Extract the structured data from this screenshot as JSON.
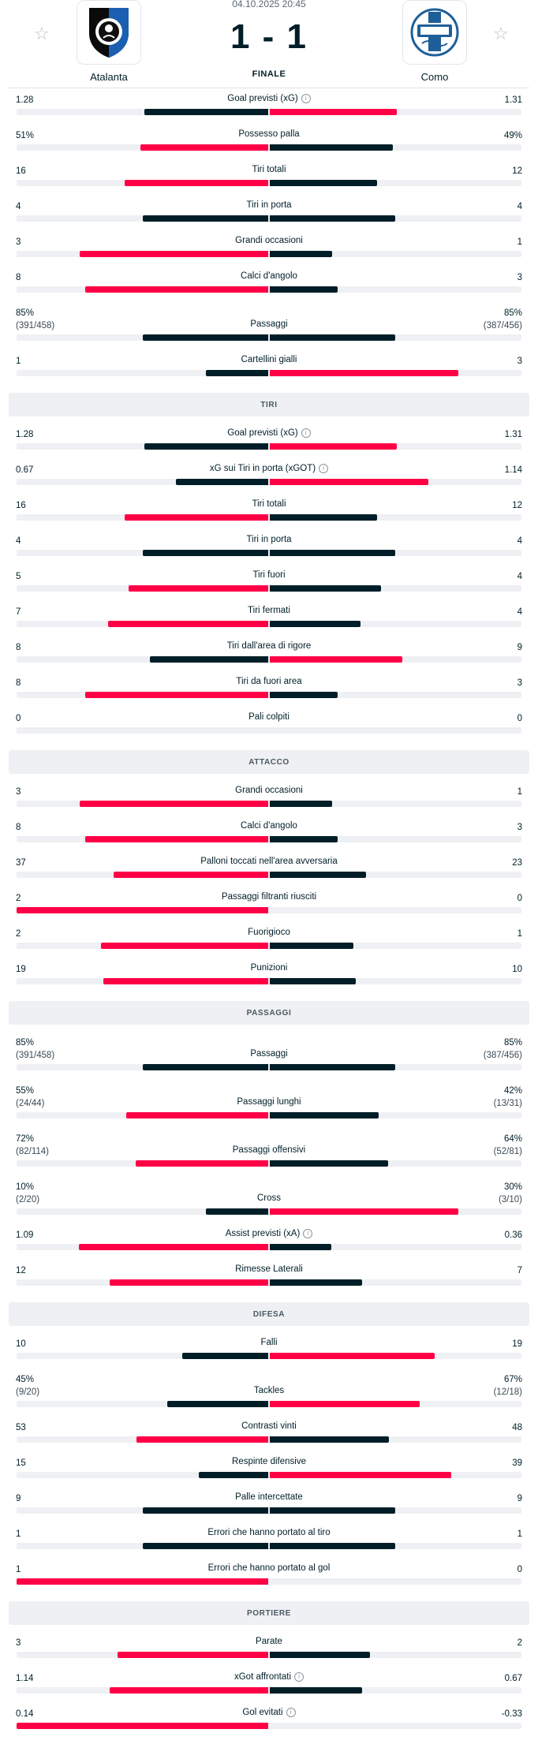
{
  "match": {
    "date": "04.10.2025 20:45",
    "score": "1 - 1",
    "status": "FINALE",
    "home": {
      "name": "Atalanta"
    },
    "away": {
      "name": "Como"
    }
  },
  "colors": {
    "accent": "#ff0046",
    "dark": "#001e28",
    "track": "#eef0f3"
  },
  "sections": [
    {
      "title": "",
      "rows": [
        {
          "label": "Goal previsti (xG)",
          "info": true,
          "home": "1.28",
          "away": "1.31",
          "hn": 1.28,
          "an": 1.31
        },
        {
          "label": "Possesso palla",
          "home": "51%",
          "away": "49%",
          "hn": 51,
          "an": 49
        },
        {
          "label": "Tiri totali",
          "home": "16",
          "away": "12",
          "hn": 16,
          "an": 12
        },
        {
          "label": "Tiri in porta",
          "home": "4",
          "away": "4",
          "hn": 4,
          "an": 4
        },
        {
          "label": "Grandi occasioni",
          "home": "3",
          "away": "1",
          "hn": 3,
          "an": 1
        },
        {
          "label": "Calci d'angolo",
          "home": "8",
          "away": "3",
          "hn": 8,
          "an": 3
        },
        {
          "label": "Passaggi",
          "home": "85%",
          "home_sub": "(391/458)",
          "away": "85%",
          "away_sub": "(387/456)",
          "hn": 85,
          "an": 85
        },
        {
          "label": "Cartellini gialli",
          "home": "1",
          "away": "3",
          "hn": 1,
          "an": 3,
          "lower_better": true
        }
      ]
    },
    {
      "title": "TIRI",
      "rows": [
        {
          "label": "Goal previsti (xG)",
          "info": true,
          "home": "1.28",
          "away": "1.31",
          "hn": 1.28,
          "an": 1.31
        },
        {
          "label": "xG sui Tiri in porta (xGOT)",
          "info": true,
          "home": "0.67",
          "away": "1.14",
          "hn": 0.67,
          "an": 1.14
        },
        {
          "label": "Tiri totali",
          "home": "16",
          "away": "12",
          "hn": 16,
          "an": 12
        },
        {
          "label": "Tiri in porta",
          "home": "4",
          "away": "4",
          "hn": 4,
          "an": 4
        },
        {
          "label": "Tiri fuori",
          "home": "5",
          "away": "4",
          "hn": 5,
          "an": 4
        },
        {
          "label": "Tiri fermati",
          "home": "7",
          "away": "4",
          "hn": 7,
          "an": 4
        },
        {
          "label": "Tiri dall'area di rigore",
          "home": "8",
          "away": "9",
          "hn": 8,
          "an": 9
        },
        {
          "label": "Tiri da fuori area",
          "home": "8",
          "away": "3",
          "hn": 8,
          "an": 3
        },
        {
          "label": "Pali colpiti",
          "home": "0",
          "away": "0",
          "hn": 0,
          "an": 0
        }
      ]
    },
    {
      "title": "ATTACCO",
      "rows": [
        {
          "label": "Grandi occasioni",
          "home": "3",
          "away": "1",
          "hn": 3,
          "an": 1
        },
        {
          "label": "Calci d'angolo",
          "home": "8",
          "away": "3",
          "hn": 8,
          "an": 3
        },
        {
          "label": "Palloni toccati nell'area avversaria",
          "home": "37",
          "away": "23",
          "hn": 37,
          "an": 23
        },
        {
          "label": "Passaggi filtranti riusciti",
          "home": "2",
          "away": "0",
          "hn": 2,
          "an": 0
        },
        {
          "label": "Fuorigioco",
          "home": "2",
          "away": "1",
          "hn": 2,
          "an": 1
        },
        {
          "label": "Punizioni",
          "home": "19",
          "away": "10",
          "hn": 19,
          "an": 10
        }
      ]
    },
    {
      "title": "PASSAGGI",
      "rows": [
        {
          "label": "Passaggi",
          "home": "85%",
          "home_sub": "(391/458)",
          "away": "85%",
          "away_sub": "(387/456)",
          "hn": 85,
          "an": 85
        },
        {
          "label": "Passaggi lunghi",
          "home": "55%",
          "home_sub": "(24/44)",
          "away": "42%",
          "away_sub": "(13/31)",
          "hn": 55,
          "an": 42
        },
        {
          "label": "Passaggi offensivi",
          "home": "72%",
          "home_sub": "(82/114)",
          "away": "64%",
          "away_sub": "(52/81)",
          "hn": 72,
          "an": 64
        },
        {
          "label": "Cross",
          "home": "10%",
          "home_sub": "(2/20)",
          "away": "30%",
          "away_sub": "(3/10)",
          "hn": 10,
          "an": 30
        },
        {
          "label": "Assist previsti (xA)",
          "info": true,
          "home": "1.09",
          "away": "0.36",
          "hn": 1.09,
          "an": 0.36
        },
        {
          "label": "Rimesse Laterali",
          "home": "12",
          "away": "7",
          "hn": 12,
          "an": 7
        }
      ]
    },
    {
      "title": "DIFESA",
      "rows": [
        {
          "label": "Falli",
          "home": "10",
          "away": "19",
          "hn": 10,
          "an": 19
        },
        {
          "label": "Tackles",
          "home": "45%",
          "home_sub": "(9/20)",
          "away": "67%",
          "away_sub": "(12/18)",
          "hn": 45,
          "an": 67
        },
        {
          "label": "Contrasti vinti",
          "home": "53",
          "away": "48",
          "hn": 53,
          "an": 48
        },
        {
          "label": "Respinte difensive",
          "home": "15",
          "away": "39",
          "hn": 15,
          "an": 39
        },
        {
          "label": "Palle intercettate",
          "home": "9",
          "away": "9",
          "hn": 9,
          "an": 9
        },
        {
          "label": "Errori che hanno portato al tiro",
          "home": "1",
          "away": "1",
          "hn": 1,
          "an": 1
        },
        {
          "label": "Errori che hanno portato al gol",
          "home": "1",
          "away": "0",
          "hn": 1,
          "an": 0,
          "lower_better": true
        }
      ]
    },
    {
      "title": "PORTIERE",
      "rows": [
        {
          "label": "Parate",
          "home": "3",
          "away": "2",
          "hn": 3,
          "an": 2
        },
        {
          "label": "xGot affrontati",
          "info": true,
          "home": "1.14",
          "away": "0.67",
          "hn": 1.14,
          "an": 0.67
        },
        {
          "label": "Gol evitati",
          "info": true,
          "home": "0.14",
          "away": "-0.33",
          "hn": 0.14,
          "an": -0.33
        }
      ]
    }
  ]
}
